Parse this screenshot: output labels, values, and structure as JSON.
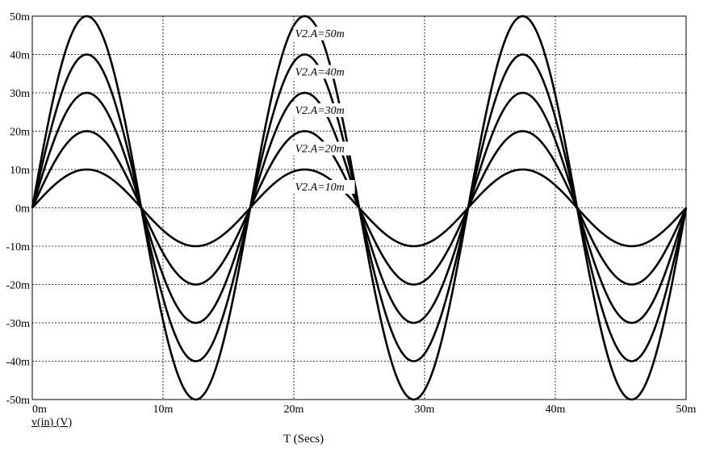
{
  "chart_data": {
    "type": "line",
    "title": "",
    "xlabel": "T (Secs)",
    "ylabel": "v(in) (V)",
    "xlim": [
      0,
      0.05
    ],
    "ylim": [
      -0.05,
      0.05
    ],
    "x_tick_labels": [
      "0m",
      "10m",
      "20m",
      "30m",
      "40m",
      "50m"
    ],
    "x_tick_values": [
      0,
      0.01,
      0.02,
      0.03,
      0.04,
      0.05
    ],
    "y_tick_labels": [
      "50m",
      "40m",
      "30m",
      "20m",
      "10m",
      "0m",
      "-10m",
      "-20m",
      "-30m",
      "-40m",
      "-50m"
    ],
    "y_tick_values": [
      0.05,
      0.04,
      0.03,
      0.02,
      0.01,
      0,
      -0.01,
      -0.02,
      -0.03,
      -0.04,
      -0.05
    ],
    "grid": true,
    "frequency_hz": 60,
    "series": [
      {
        "name": "V2.A=50m",
        "amplitude": 0.05
      },
      {
        "name": "V2.A=40m",
        "amplitude": 0.04
      },
      {
        "name": "V2.A=30m",
        "amplitude": 0.03
      },
      {
        "name": "V2.A=20m",
        "amplitude": 0.02
      },
      {
        "name": "V2.A=10m",
        "amplitude": 0.01
      }
    ],
    "line_color": "#000000"
  }
}
